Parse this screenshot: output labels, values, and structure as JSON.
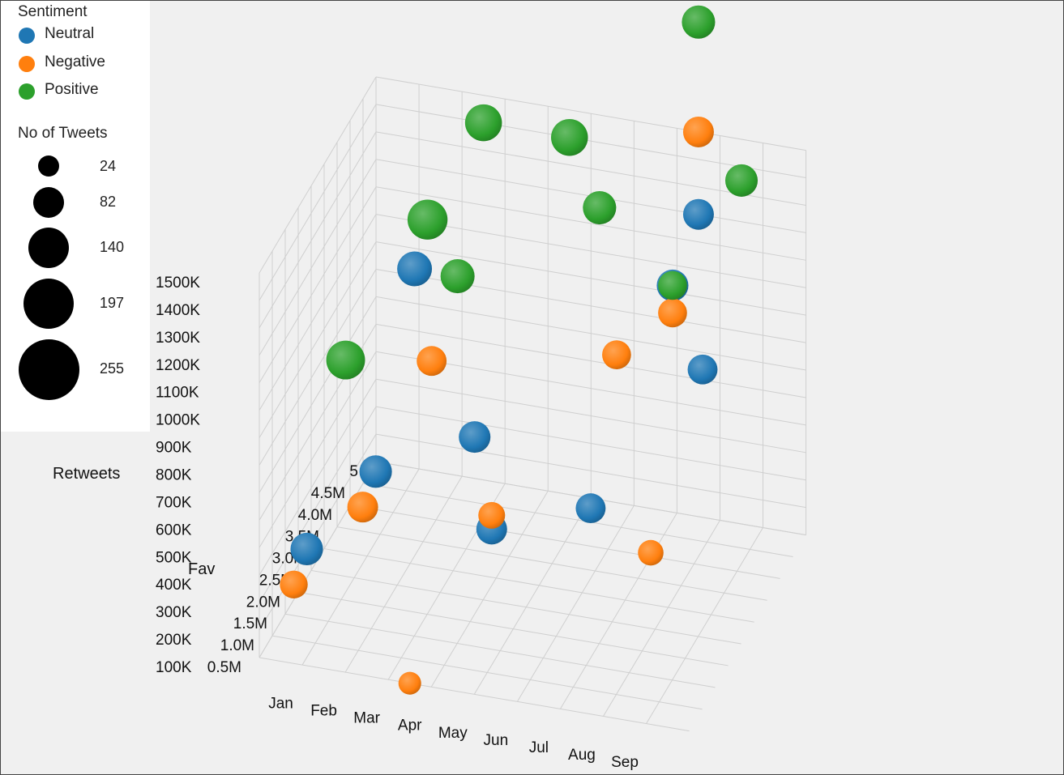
{
  "legend": {
    "color_title": "Sentiment",
    "items": [
      {
        "label": "Neutral",
        "color": "#1f77b4"
      },
      {
        "label": "Negative",
        "color": "#ff7f0e"
      },
      {
        "label": "Positive",
        "color": "#2ca02c"
      }
    ],
    "size_title": "No of Tweets",
    "sizes": [
      {
        "label": "24",
        "value": 24
      },
      {
        "label": "82",
        "value": 82
      },
      {
        "label": "140",
        "value": 140
      },
      {
        "label": "197",
        "value": 197
      },
      {
        "label": "255",
        "value": 255
      }
    ]
  },
  "chart_data": {
    "type": "scatter",
    "subtype": "3d-bubble",
    "x_axis": {
      "title": "",
      "categories": [
        "Jan",
        "Feb",
        "Mar",
        "Apr",
        "May",
        "Jun",
        "Jul",
        "Aug",
        "Sep"
      ]
    },
    "y_axis": {
      "title": "Fav",
      "tick_labels": [
        "0.5M",
        "1.0M",
        "1.5M",
        "2.0M",
        "2.5M",
        "3.0M",
        "3.5M",
        "4.0M",
        "4.5M",
        "5"
      ],
      "range": [
        0.5,
        5.0
      ],
      "unit": "M"
    },
    "z_axis": {
      "title": "Retweets",
      "tick_labels": [
        "100K",
        "200K",
        "300K",
        "400K",
        "500K",
        "600K",
        "700K",
        "800K",
        "900K",
        "1000K",
        "1100K",
        "1200K",
        "1300K",
        "1400K",
        "1500K"
      ],
      "range": [
        100,
        1500
      ],
      "unit": "K"
    },
    "grid": true,
    "legend_position": "top-left",
    "series": [
      {
        "name": "Neutral",
        "color": "#1f77b4",
        "points": [
          {
            "month": "Jan",
            "fav": 1.5,
            "retweets": 350,
            "tweets": 120
          },
          {
            "month": "Feb",
            "fav": 2.5,
            "retweets": 500,
            "tweets": 120
          },
          {
            "month": "Feb",
            "fav": 4.0,
            "retweets": 1000,
            "tweets": 150
          },
          {
            "month": "Apr",
            "fav": 3.0,
            "retweets": 600,
            "tweets": 110
          },
          {
            "month": "May",
            "fav": 2.0,
            "retweets": 450,
            "tweets": 100
          },
          {
            "month": "Jul",
            "fav": 2.5,
            "retweets": 500,
            "tweets": 90
          },
          {
            "month": "Aug",
            "fav": 4.0,
            "retweets": 1100,
            "tweets": 110
          },
          {
            "month": "Sep",
            "fav": 3.5,
            "retweets": 900,
            "tweets": 90
          },
          {
            "month": "Aug",
            "fav": 5.0,
            "retweets": 1200,
            "tweets": 100
          }
        ]
      },
      {
        "name": "Negative",
        "color": "#ff7f0e",
        "points": [
          {
            "month": "Jan",
            "fav": 1.0,
            "retweets": 300,
            "tweets": 70
          },
          {
            "month": "Feb",
            "fav": 2.0,
            "retweets": 450,
            "tweets": 100
          },
          {
            "month": "Mar",
            "fav": 3.0,
            "retweets": 850,
            "tweets": 90
          },
          {
            "month": "Apr",
            "fav": 0.5,
            "retweets": 100,
            "tweets": 30
          },
          {
            "month": "May",
            "fav": 2.0,
            "retweets": 500,
            "tweets": 60
          },
          {
            "month": "Jul",
            "fav": 3.5,
            "retweets": 900,
            "tweets": 80
          },
          {
            "month": "Aug",
            "fav": 4.0,
            "retweets": 1000,
            "tweets": 80
          },
          {
            "month": "Sep",
            "fav": 1.5,
            "retweets": 550,
            "tweets": 50
          },
          {
            "month": "Aug",
            "fav": 5.0,
            "retweets": 1500,
            "tweets": 100
          }
        ]
      },
      {
        "name": "Positive",
        "color": "#2ca02c",
        "points": [
          {
            "month": "Jan",
            "fav": 3.0,
            "retweets": 800,
            "tweets": 210
          },
          {
            "month": "Feb",
            "fav": 4.5,
            "retweets": 1100,
            "tweets": 230
          },
          {
            "month": "Mar",
            "fav": 4.0,
            "retweets": 1000,
            "tweets": 140
          },
          {
            "month": "Mar",
            "fav": 5.0,
            "retweets": 1400,
            "tweets": 180
          },
          {
            "month": "May",
            "fav": 5.0,
            "retweets": 1400,
            "tweets": 180
          },
          {
            "month": "Jun",
            "fav": 4.5,
            "retweets": 1250,
            "tweets": 130
          },
          {
            "month": "Aug",
            "fav": 4.0,
            "retweets": 1100,
            "tweets": 80
          },
          {
            "month": "Sep",
            "fav": 5.0,
            "retweets": 1350,
            "tweets": 120
          },
          {
            "month": "Aug",
            "fav": 5.0,
            "retweets": 1900,
            "tweets": 130
          }
        ]
      }
    ]
  }
}
